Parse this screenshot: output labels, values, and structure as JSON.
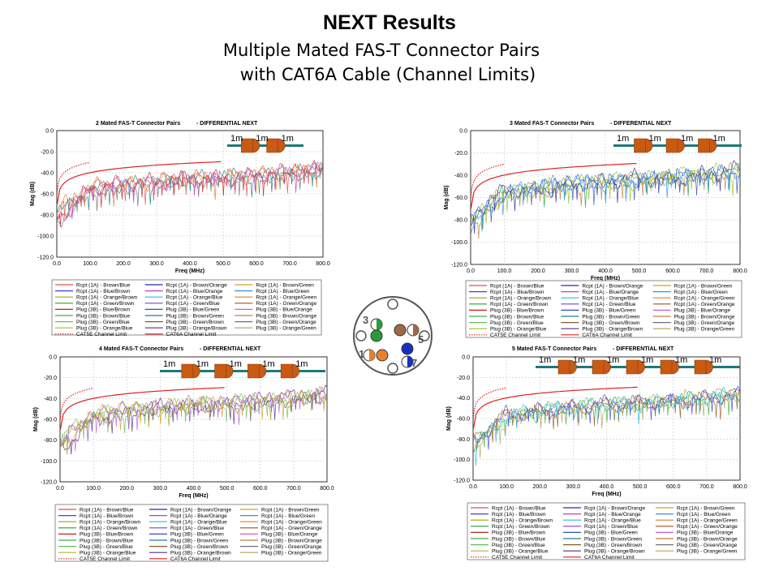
{
  "slide": {
    "title": "NEXT Results",
    "subtitle_line1": "Multiple Mated FAS-T Connector Pairs",
    "subtitle_line2": "with CAT6A Cable (Channel Limits)"
  },
  "legend_entries": [
    {
      "label": "Rcpt (1A) - Brown/Blue",
      "color": "#e05050",
      "dash": false
    },
    {
      "label": "Rcpt (1A) - Brown/Orange",
      "color": "#2a2aa0",
      "dash": false
    },
    {
      "label": "Rcpt (1A) - Brown/Green",
      "color": "#d0a020",
      "dash": false
    },
    {
      "label": "Rcpt (1A) - Blue/Brown",
      "color": "#4040e0",
      "dash": false
    },
    {
      "label": "Rcpt (1A) - Blue/Orange",
      "color": "#c040c0",
      "dash": false
    },
    {
      "label": "Rcpt (1A) - Blue/Green",
      "color": "#3090f0",
      "dash": false
    },
    {
      "label": "Rcpt (1A) - Orange/Brown",
      "color": "#a0a020",
      "dash": false
    },
    {
      "label": "Rcpt (1A) - Orange/Blue",
      "color": "#20c0e0",
      "dash": false
    },
    {
      "label": "Rcpt (1A) - Orange/Green",
      "color": "#e08020",
      "dash": false
    },
    {
      "label": "Rcpt (1A) - Green/Brown",
      "color": "#20a040",
      "dash": false
    },
    {
      "label": "Rcpt (1A) - Green/Blue",
      "color": "#8040c0",
      "dash": false
    },
    {
      "label": "Rcpt (1A) - Green/Orange",
      "color": "#a05020",
      "dash": false
    },
    {
      "label": "Plug (3B) - Blue/Brown",
      "color": "#c02020",
      "dash": false
    },
    {
      "label": "Plug (3B) - Blue/Green",
      "color": "#3050c0",
      "dash": false
    },
    {
      "label": "Plug (3B) - Blue/Orange",
      "color": "#c060e0",
      "dash": false
    },
    {
      "label": "Plug (3B) - Brown/Blue",
      "color": "#40b040",
      "dash": false
    },
    {
      "label": "Plug (3B) - Brown/Green",
      "color": "#208080",
      "dash": false
    },
    {
      "label": "Plug (3B) - Brown/Orange",
      "color": "#c08040",
      "dash": false
    },
    {
      "label": "Plug (3B) - Green/Blue",
      "color": "#60c060",
      "dash": false
    },
    {
      "label": "Plug (3B) - Green/Brown",
      "color": "#806020",
      "dash": false
    },
    {
      "label": "Plug (3B) - Green/Orange",
      "color": "#707070",
      "dash": false
    },
    {
      "label": "Plug (3B) - Orange/Blue",
      "color": "#a0c020",
      "dash": false
    },
    {
      "label": "Plug (3B) - Orange/Brown",
      "color": "#503080",
      "dash": false
    },
    {
      "label": "Plug (3B) - Orange/Green",
      "color": "#b0a050",
      "dash": false
    },
    {
      "label": "CAT5E Channel Limit",
      "color": "#e02020",
      "dash": true
    },
    {
      "label": "CAT6A Channel Limit",
      "color": "#e02020",
      "dash": false
    }
  ],
  "connector_diagram": {
    "pin_labels": [
      "3",
      "5",
      "1",
      "7"
    ]
  },
  "chart_data": [
    {
      "type": "line",
      "title": "2 Mated FAS-T Connector Pairs",
      "title_suffix": "- DIFFERENTIAL NEXT",
      "xlabel": "Freq (MHz)",
      "ylabel": "Mag (dB)",
      "xlim": [
        0,
        800
      ],
      "ylim": [
        -120,
        0
      ],
      "x_ticks": [
        "0.0",
        "100.0",
        "200.0",
        "300.0",
        "400.0",
        "500.0",
        "600.0",
        "700.0",
        "800.0"
      ],
      "y_ticks": [
        "0.0",
        "-20.0",
        "-40.0",
        "-60.0",
        "-80.0",
        "-100.0",
        "-120.0"
      ],
      "segment_labels": [
        "1m",
        "1m",
        "1m"
      ],
      "grid": true,
      "legend": "bottom",
      "series": [
        {
          "name": "CAT5E Channel Limit",
          "x": [
            1,
            5,
            10,
            20,
            31.25,
            50,
            62.5,
            80,
            100
          ],
          "y": [
            -60.0,
            -49.5,
            -44.9,
            -40.2,
            -37.1,
            -34.2,
            -32.7,
            -31.1,
            -30.1
          ]
        },
        {
          "name": "CAT6A Channel Limit",
          "x": [
            1,
            10,
            50,
            100,
            200,
            300,
            400,
            500
          ],
          "y": [
            -65.0,
            -55.0,
            -44.0,
            -39.9,
            -34.8,
            -31.8,
            -29.6,
            -27.9
          ]
        },
        {
          "name": "Rcpt (1A) - Brown/Blue",
          "x": [
            1,
            100,
            200,
            300,
            400,
            500,
            600,
            700,
            800
          ],
          "y": [
            -75,
            -52,
            -52,
            -48,
            -47,
            -45,
            -43,
            -39,
            -37
          ]
        },
        {
          "name": "Rcpt (1A) - Brown/Orange",
          "x": [
            1,
            100,
            200,
            300,
            400,
            500,
            600,
            700,
            800
          ],
          "y": [
            -82,
            -55,
            -50,
            -48,
            -44,
            -46,
            -42,
            -40,
            -36
          ]
        },
        {
          "name": "Rcpt (1A) - Blue/Orange",
          "x": [
            1,
            100,
            200,
            300,
            400,
            500,
            600,
            700,
            800
          ],
          "y": [
            -78,
            -57,
            -51,
            -50,
            -46,
            -43,
            -44,
            -41,
            -38
          ]
        },
        {
          "name": "Rcpt (1A) - Orange/Green",
          "x": [
            1,
            100,
            200,
            300,
            400,
            500,
            600,
            700,
            800
          ],
          "y": [
            -88,
            -58,
            -54,
            -49,
            -48,
            -45,
            -43,
            -42,
            -35
          ]
        },
        {
          "name": "Plug (3B) - Green/Blue",
          "x": [
            1,
            100,
            200,
            300,
            400,
            500,
            600,
            700,
            800
          ],
          "y": [
            -80,
            -53,
            -53,
            -47,
            -45,
            -44,
            -41,
            -40,
            -34
          ]
        },
        {
          "name": "Plug (3B) - Orange/Brown",
          "x": [
            1,
            100,
            200,
            300,
            400,
            500,
            600,
            700,
            800
          ],
          "y": [
            -85,
            -56,
            -49,
            -51,
            -46,
            -47,
            -43,
            -38,
            -37
          ]
        }
      ]
    },
    {
      "type": "line",
      "title": "3 Mated FAS-T Connector Pairs",
      "title_suffix": "- DIFFERENTIAL NEXT",
      "xlabel": "Freq (MHz)",
      "ylabel": "Mag (dB)",
      "xlim": [
        0,
        800
      ],
      "ylim": [
        -120,
        0
      ],
      "x_ticks": [
        "0.0",
        "100.0",
        "200.0",
        "300.0",
        "400.0",
        "500.0",
        "600.0",
        "700.0",
        "800.0"
      ],
      "y_ticks": [
        "0.0",
        "-20.0",
        "-40.0",
        "-60.0",
        "-80.0",
        "-100.0",
        "-120.0"
      ],
      "segment_labels": [
        "1m",
        "1m",
        "1m",
        "1m"
      ],
      "grid": true,
      "legend": "bottom",
      "series": [
        {
          "name": "CAT5E Channel Limit",
          "x": [
            1,
            5,
            10,
            20,
            31.25,
            50,
            62.5,
            80,
            100
          ],
          "y": [
            -60.0,
            -49.5,
            -44.9,
            -40.2,
            -37.1,
            -34.2,
            -32.7,
            -31.1,
            -30.1
          ]
        },
        {
          "name": "CAT6A Channel Limit",
          "x": [
            1,
            10,
            50,
            100,
            200,
            300,
            400,
            500
          ],
          "y": [
            -65.0,
            -55.0,
            -44.0,
            -39.9,
            -34.8,
            -31.8,
            -29.6,
            -27.9
          ]
        },
        {
          "name": "Rcpt (1A) - Brown/Blue",
          "x": [
            1,
            100,
            200,
            300,
            400,
            500,
            600,
            700,
            800
          ],
          "y": [
            -78,
            -55,
            -52,
            -48,
            -46,
            -44,
            -42,
            -40,
            -38
          ]
        },
        {
          "name": "Rcpt (1A) - Brown/Orange",
          "x": [
            1,
            100,
            200,
            300,
            400,
            500,
            600,
            700,
            800
          ],
          "y": [
            -80,
            -57,
            -50,
            -47,
            -45,
            -45,
            -41,
            -39,
            -36
          ]
        },
        {
          "name": "Rcpt (1A) - Blue/Orange",
          "x": [
            1,
            100,
            200,
            300,
            400,
            500,
            600,
            700,
            800
          ],
          "y": [
            -85,
            -54,
            -53,
            -50,
            -47,
            -43,
            -43,
            -41,
            -35
          ]
        },
        {
          "name": "Rcpt (1A) - Orange/Green",
          "x": [
            1,
            100,
            200,
            300,
            400,
            500,
            600,
            700,
            800
          ],
          "y": [
            -82,
            -58,
            -51,
            -49,
            -44,
            -46,
            -40,
            -38,
            -37
          ]
        },
        {
          "name": "Plug (3B) - Green/Blue",
          "x": [
            1,
            100,
            200,
            300,
            400,
            500,
            600,
            700,
            800
          ],
          "y": [
            -76,
            -53,
            -54,
            -48,
            -45,
            -42,
            -44,
            -39,
            -34
          ]
        },
        {
          "name": "Plug (3B) - Orange/Brown",
          "x": [
            1,
            100,
            200,
            300,
            400,
            500,
            600,
            700,
            800
          ],
          "y": [
            -88,
            -56,
            -49,
            -46,
            -48,
            -44,
            -42,
            -40,
            -36
          ]
        }
      ]
    },
    {
      "type": "line",
      "title": "4 Mated FAS-T Connector Pairs",
      "title_suffix": "- DIFFERENTIAL NEXT",
      "xlabel": "Freq (MHz)",
      "ylabel": "Mag (dB)",
      "xlim": [
        0,
        800
      ],
      "ylim": [
        -120,
        0
      ],
      "x_ticks": [
        "0.0",
        "100.0",
        "200.0",
        "300.0",
        "400.0",
        "500.0",
        "600.0",
        "700.0",
        "800.0"
      ],
      "y_ticks": [
        "0.0",
        "-20.0",
        "-40.0",
        "-60.0",
        "-80.0",
        "-100.0",
        "-120.0"
      ],
      "segment_labels": [
        "1m",
        "1m",
        "1m",
        "1m",
        "1m"
      ],
      "grid": true,
      "legend": "bottom",
      "series": [
        {
          "name": "CAT5E Channel Limit",
          "x": [
            1,
            5,
            10,
            20,
            31.25,
            50,
            62.5,
            80,
            100
          ],
          "y": [
            -60.0,
            -49.5,
            -44.9,
            -40.2,
            -37.1,
            -34.2,
            -32.7,
            -31.1,
            -30.1
          ]
        },
        {
          "name": "CAT6A Channel Limit",
          "x": [
            1,
            10,
            50,
            100,
            200,
            300,
            400,
            500
          ],
          "y": [
            -65.0,
            -55.0,
            -44.0,
            -39.9,
            -34.8,
            -31.8,
            -29.6,
            -27.9
          ]
        },
        {
          "name": "Rcpt (1A) - Brown/Blue",
          "x": [
            1,
            100,
            200,
            300,
            400,
            500,
            600,
            700,
            800
          ],
          "y": [
            -80,
            -56,
            -52,
            -49,
            -47,
            -44,
            -43,
            -40,
            -38
          ]
        },
        {
          "name": "Rcpt (1A) - Brown/Orange",
          "x": [
            1,
            100,
            200,
            300,
            400,
            500,
            600,
            700,
            800
          ],
          "y": [
            -84,
            -58,
            -50,
            -48,
            -45,
            -45,
            -42,
            -39,
            -37
          ]
        },
        {
          "name": "Rcpt (1A) - Blue/Orange",
          "x": [
            1,
            100,
            200,
            300,
            400,
            500,
            600,
            700,
            800
          ],
          "y": [
            -78,
            -55,
            -53,
            -50,
            -46,
            -43,
            -44,
            -41,
            -36
          ]
        },
        {
          "name": "Rcpt (1A) - Orange/Green",
          "x": [
            1,
            100,
            200,
            300,
            400,
            500,
            600,
            700,
            800
          ],
          "y": [
            -90,
            -60,
            -54,
            -47,
            -48,
            -46,
            -41,
            -38,
            -35
          ]
        },
        {
          "name": "Plug (3B) - Green/Blue",
          "x": [
            1,
            100,
            200,
            300,
            400,
            500,
            600,
            700,
            800
          ],
          "y": [
            -82,
            -54,
            -51,
            -49,
            -44,
            -43,
            -43,
            -40,
            -37
          ]
        },
        {
          "name": "Plug (3B) - Orange/Brown",
          "x": [
            1,
            100,
            200,
            300,
            400,
            500,
            600,
            700,
            800
          ],
          "y": [
            -86,
            -57,
            -49,
            -51,
            -46,
            -47,
            -42,
            -39,
            -36
          ]
        }
      ]
    },
    {
      "type": "line",
      "title": "5 Mated FAS-T Connector Pairs",
      "title_suffix": "- DIFFERENTIAL NEXT",
      "xlabel": "Freq (MHz)",
      "ylabel": "Mag (dB)",
      "xlim": [
        0,
        800
      ],
      "ylim": [
        -120,
        0
      ],
      "x_ticks": [
        "0.0",
        "100.0",
        "200.0",
        "300.0",
        "400.0",
        "500.0",
        "600.0",
        "700.0",
        "800.0"
      ],
      "y_ticks": [
        "0.0",
        "-20.0",
        "-40.0",
        "-60.0",
        "-80.0",
        "-100.0",
        "-120.0"
      ],
      "segment_labels": [
        "1m",
        "1m",
        "1m",
        "1m",
        "1m",
        "1m"
      ],
      "grid": true,
      "legend": "bottom",
      "series": [
        {
          "name": "CAT5E Channel Limit",
          "x": [
            1,
            5,
            10,
            20,
            31.25,
            50,
            62.5,
            80,
            100
          ],
          "y": [
            -60.0,
            -49.5,
            -44.9,
            -40.2,
            -37.1,
            -34.2,
            -32.7,
            -31.1,
            -30.1
          ]
        },
        {
          "name": "CAT6A Channel Limit",
          "x": [
            1,
            10,
            50,
            100,
            200,
            300,
            400,
            500
          ],
          "y": [
            -65.0,
            -55.0,
            -44.0,
            -39.9,
            -34.8,
            -31.8,
            -29.6,
            -27.9
          ]
        },
        {
          "name": "Rcpt (1A) - Brown/Blue",
          "x": [
            1,
            100,
            200,
            300,
            400,
            500,
            600,
            700,
            800
          ],
          "y": [
            -82,
            -57,
            -53,
            -49,
            -47,
            -45,
            -43,
            -40,
            -38
          ]
        },
        {
          "name": "Rcpt (1A) - Brown/Orange",
          "x": [
            1,
            100,
            200,
            300,
            400,
            500,
            600,
            700,
            800
          ],
          "y": [
            -86,
            -59,
            -51,
            -48,
            -45,
            -46,
            -42,
            -40,
            -37
          ]
        },
        {
          "name": "Rcpt (1A) - Blue/Orange",
          "x": [
            1,
            100,
            200,
            300,
            400,
            500,
            600,
            700,
            800
          ],
          "y": [
            -80,
            -56,
            -54,
            -50,
            -47,
            -44,
            -44,
            -41,
            -36
          ]
        },
        {
          "name": "Rcpt (1A) - Orange/Green",
          "x": [
            1,
            100,
            200,
            300,
            400,
            500,
            600,
            700,
            800
          ],
          "y": [
            -90,
            -61,
            -55,
            -48,
            -48,
            -46,
            -41,
            -39,
            -35
          ]
        },
        {
          "name": "Plug (3B) - Green/Blue",
          "x": [
            1,
            100,
            200,
            300,
            400,
            500,
            600,
            700,
            800
          ],
          "y": [
            -84,
            -55,
            -52,
            -49,
            -45,
            -44,
            -43,
            -40,
            -37
          ]
        },
        {
          "name": "Plug (3B) - Orange/Brown",
          "x": [
            1,
            100,
            200,
            300,
            400,
            500,
            600,
            700,
            800
          ],
          "y": [
            -88,
            -58,
            -50,
            -51,
            -46,
            -47,
            -42,
            -39,
            -36
          ]
        }
      ]
    }
  ]
}
